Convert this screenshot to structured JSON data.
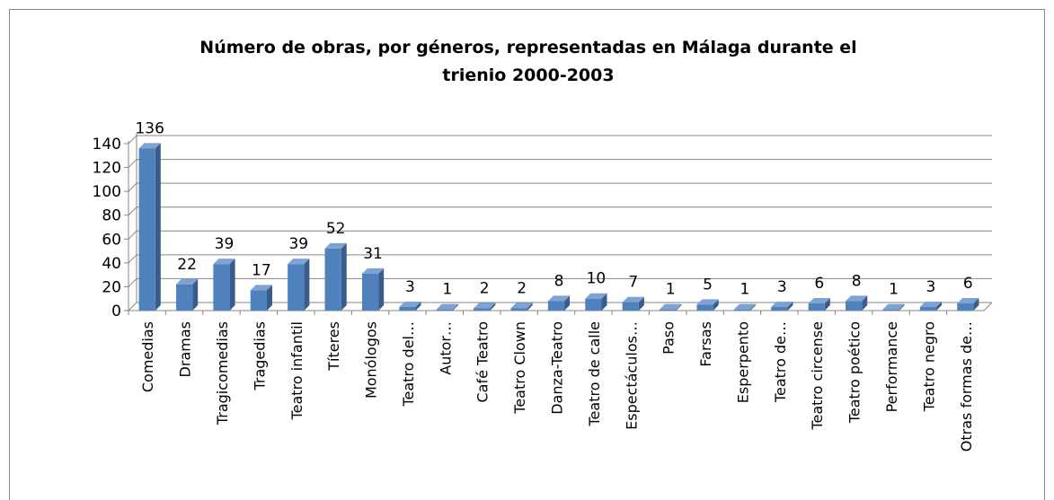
{
  "chart_data": {
    "type": "bar",
    "title": "Número de obras, por géneros, representadas en Málaga durante el trienio 2000-2003",
    "categories": [
      "Comedias",
      "Dramas",
      "Tragicomedias",
      "Tragedias",
      "Teatro infantil",
      "Títeres",
      "Monólogos",
      "Teatro del…",
      "Autor…",
      "Café Teatro",
      "Teatro Clown",
      "Danza-Teatro",
      "Teatro de calle",
      "Espectáculos…",
      "Paso",
      "Farsas",
      "Esperpento",
      "Teatro de…",
      "Teatro circense",
      "Teatro poético",
      "Performance",
      "Teatro negro",
      "Otras formas de…"
    ],
    "values": [
      136,
      22,
      39,
      17,
      39,
      52,
      31,
      3,
      1,
      2,
      2,
      8,
      10,
      7,
      1,
      5,
      1,
      3,
      6,
      8,
      1,
      3,
      6
    ],
    "color": "#4f81bd",
    "ylim": [
      0,
      140
    ],
    "yticks": [
      0,
      20,
      40,
      60,
      80,
      100,
      120,
      140
    ],
    "grid": true
  }
}
